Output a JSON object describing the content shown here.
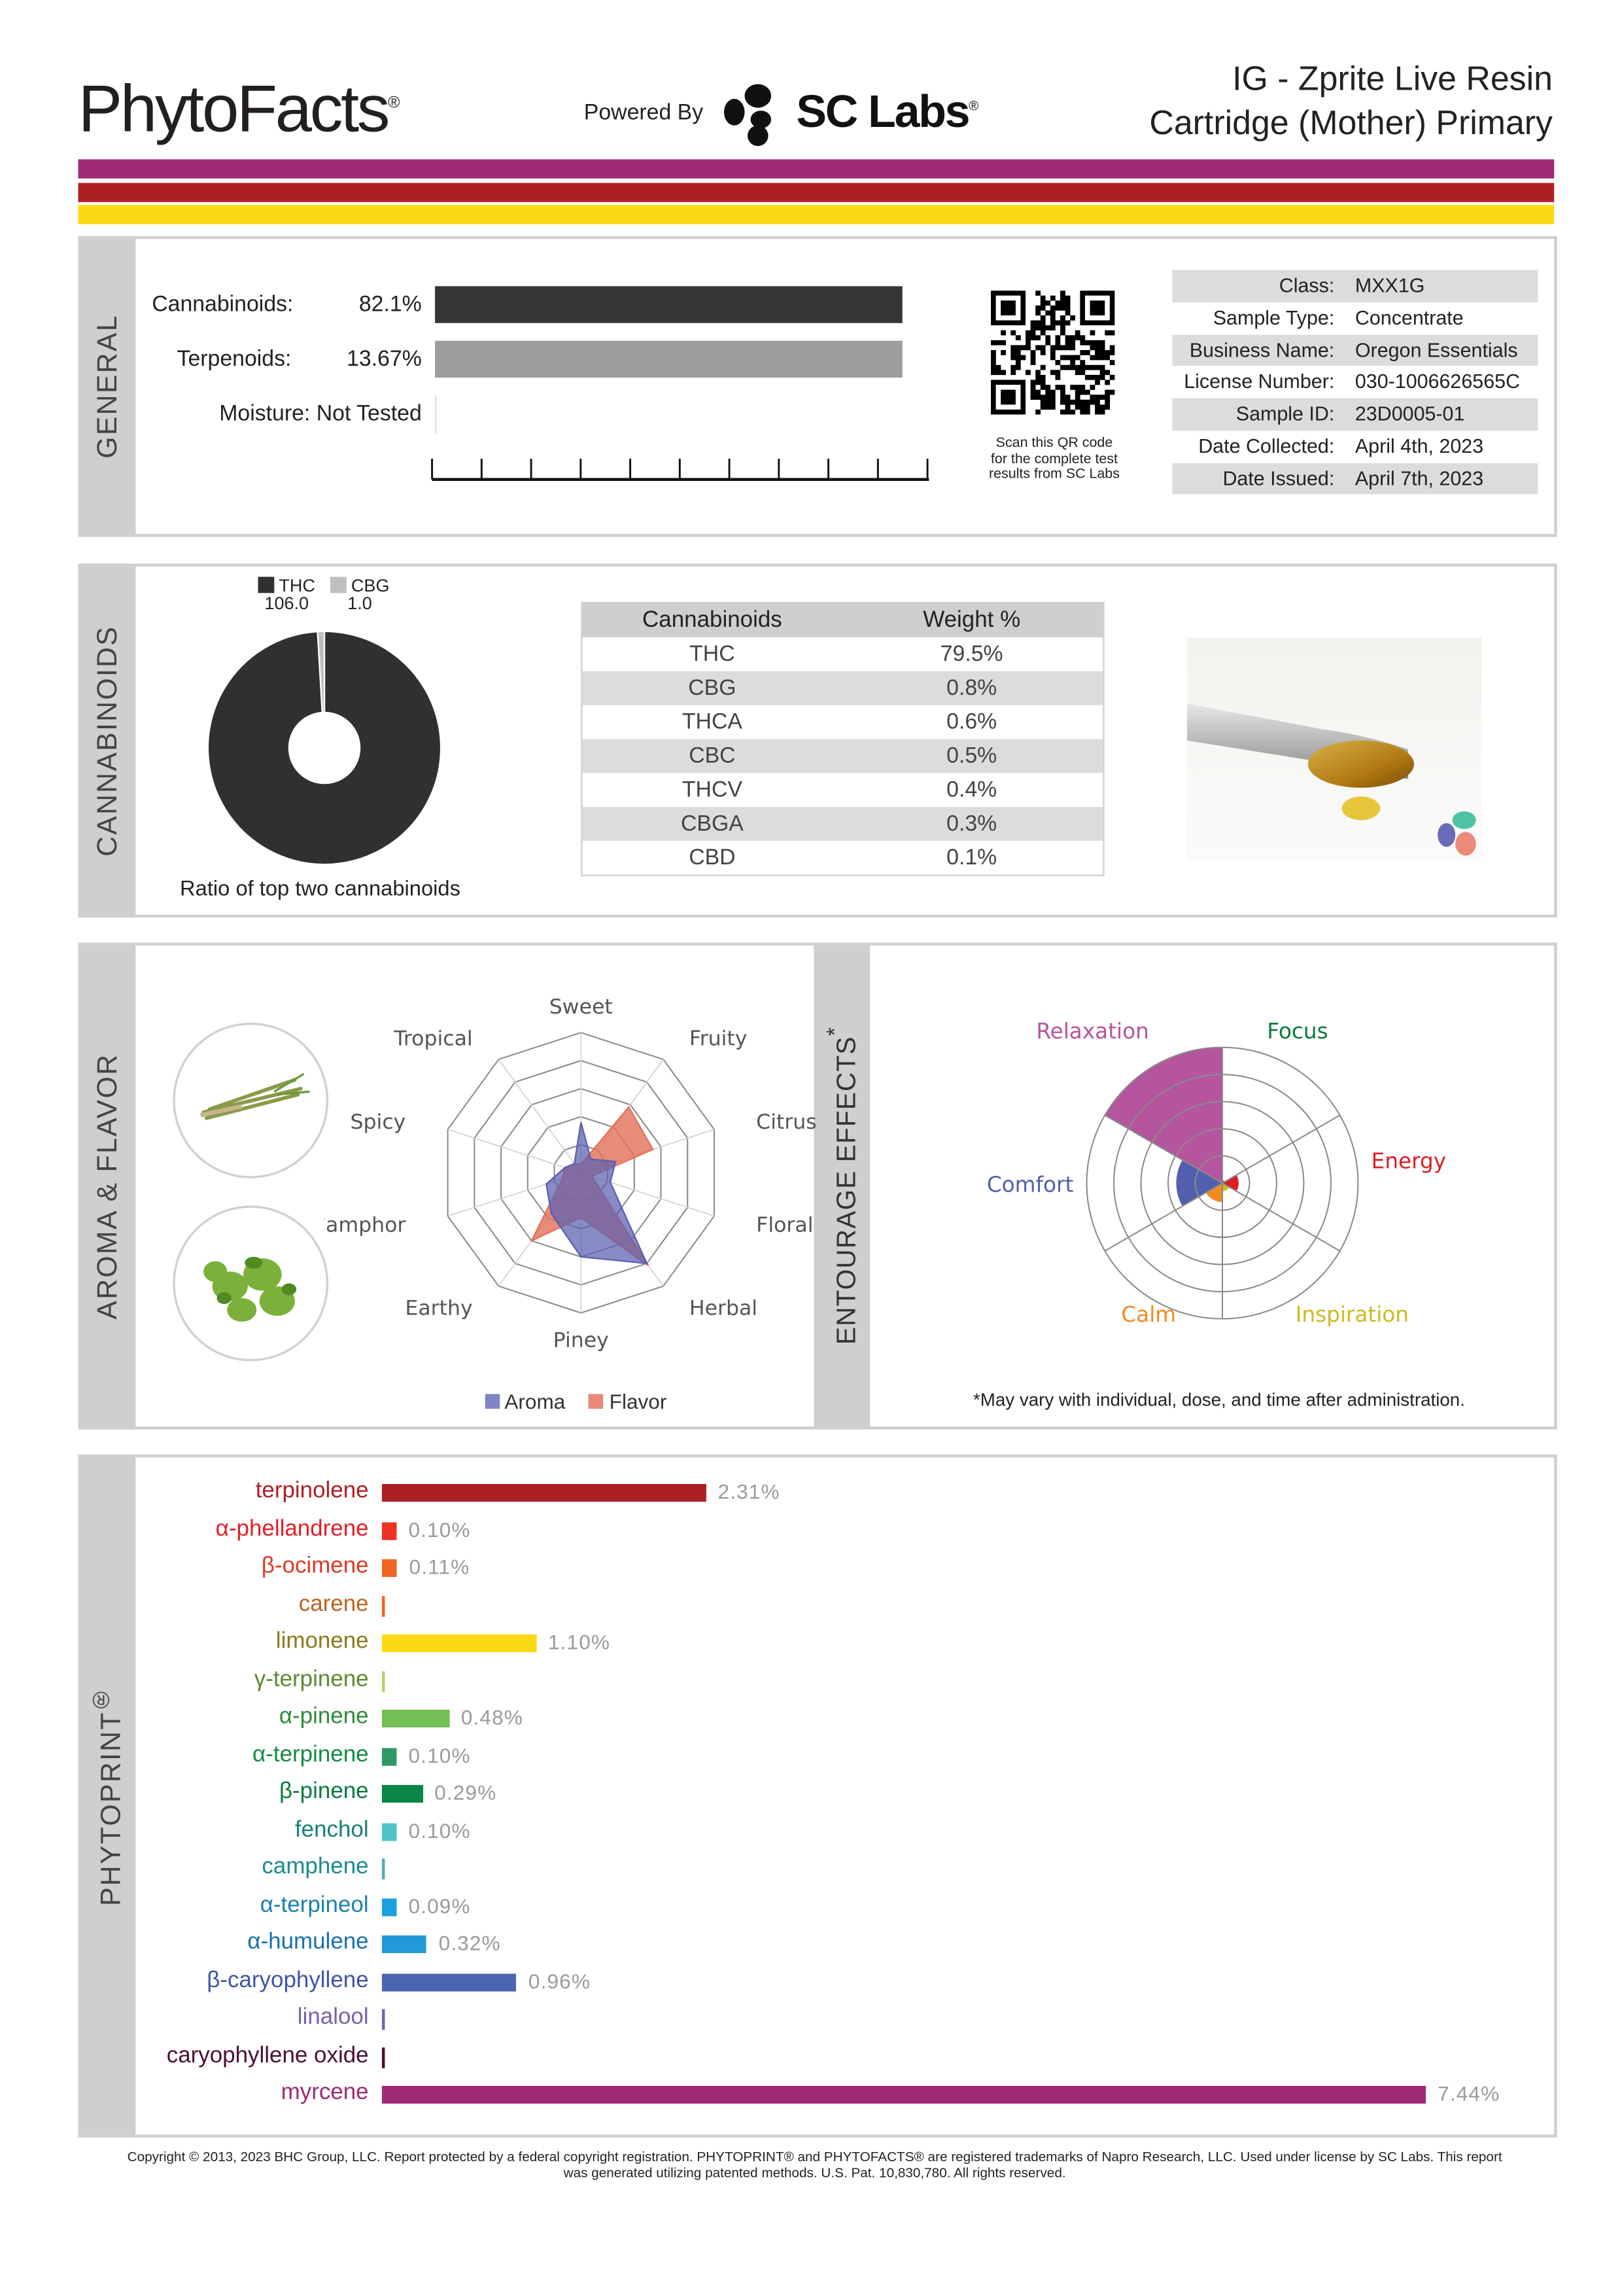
{
  "header": {
    "brand": "PhytoFacts",
    "brand_mark": "®",
    "powered_by": "Powered By",
    "lab_logo": "SC Labs",
    "title_line1": "IG - Zprite Live Resin",
    "title_line2": "Cartridge (Mother) Primary"
  },
  "colors": {
    "purple": "#9e2a76",
    "red": "#ae1f24",
    "yellow": "#fbd914",
    "panel_gray": "#cfcfd1"
  },
  "general": {
    "section_label": "GENERAL",
    "cannabinoids_label": "Cannabinoids:",
    "cannabinoids_value": "82.1%",
    "terpenoids_label": "Terpenoids:",
    "terpenoids_value": "13.67%",
    "moisture_label": "Moisture:",
    "moisture_value": "Not Tested",
    "qr_caption_1": "Scan this QR code",
    "qr_caption_2": "for the complete test",
    "qr_caption_3": "results from SC Labs",
    "info": [
      {
        "key": "Class:",
        "value": "MXX1G"
      },
      {
        "key": "Sample Type:",
        "value": "Concentrate"
      },
      {
        "key": "Business Name:",
        "value": "Oregon Essentials"
      },
      {
        "key": "License Number:",
        "value": "030-1006626565C"
      },
      {
        "key": "Sample ID:",
        "value": "23D0005-01"
      },
      {
        "key": "Date Collected:",
        "value": "April 4th, 2023"
      },
      {
        "key": "Date Issued:",
        "value": "April 7th, 2023"
      }
    ]
  },
  "cannabinoids": {
    "section_label": "CANNABINOIDS",
    "ratio_caption": "Ratio of top two cannabinoids",
    "table_headers": [
      "Cannabinoids",
      "Weight %"
    ],
    "rows": [
      {
        "name": "THC",
        "weight": "79.5%"
      },
      {
        "name": "CBG",
        "weight": "0.8%"
      },
      {
        "name": "THCA",
        "weight": "0.6%"
      },
      {
        "name": "CBC",
        "weight": "0.5%"
      },
      {
        "name": "THCV",
        "weight": "0.4%"
      },
      {
        "name": "CBGA",
        "weight": "0.3%"
      },
      {
        "name": "CBD",
        "weight": "0.1%"
      }
    ]
  },
  "aroma": {
    "section_label": "AROMA & FLAVOR",
    "effects_label": "ENTOURAGE EFFECTS",
    "effects_mark": "*",
    "disclaimer": "*May vary with individual, dose, and time after administration."
  },
  "phytoprint": {
    "section_label": "PHYTOPRINT",
    "mark": "®"
  },
  "chart_data": [
    {
      "type": "pie",
      "id": "ratio",
      "donut": true,
      "categories": [
        "THC",
        "CBG"
      ],
      "values": [
        106.0,
        1.0
      ],
      "value_labels": [
        "106.0",
        "1.0"
      ],
      "colors": [
        "#2f3131",
        "#bfbfbf"
      ],
      "legend": "top"
    },
    {
      "type": "radar",
      "id": "aroma_flavor",
      "axes": [
        "Sweet",
        "Fruity",
        "Citrus",
        "Floral",
        "Herbal",
        "Piney",
        "Earthy",
        "Camphor",
        "Spicy",
        "Tropical"
      ],
      "max": 5,
      "series": [
        {
          "name": "Aroma",
          "color": "#5a5fb0",
          "values": [
            1.8,
            0.6,
            1.3,
            1.1,
            4.0,
            3.0,
            1.8,
            1.3,
            0.6,
            0.4
          ]
        },
        {
          "name": "Flavor",
          "color": "#e4705a",
          "values": [
            0.3,
            2.9,
            2.7,
            0.4,
            4.1,
            1.6,
            3.0,
            0.7,
            0.6,
            0.4
          ]
        }
      ],
      "legend": "bottom"
    },
    {
      "type": "polar-bar",
      "id": "effects",
      "max": 5,
      "categories": [
        "Relaxation",
        "Focus",
        "Energy",
        "Inspiration",
        "Calm",
        "Comfort"
      ],
      "values": [
        5.0,
        0.1,
        0.6,
        0.3,
        0.7,
        1.7
      ],
      "colors": [
        "#b5559d",
        "#0a7a3a",
        "#dd1f26",
        "#cdbb1f",
        "#f28a1e",
        "#525fae"
      ]
    },
    {
      "type": "bar",
      "id": "terpenes",
      "orientation": "horizontal",
      "unit": "%",
      "items": [
        {
          "name": "terpinolene",
          "value": 2.31,
          "label": "2.31%",
          "text": "#ae1f24",
          "bar": "#ae1f24"
        },
        {
          "name": "α-phellandrene",
          "value": 0.1,
          "label": "0.10%",
          "text": "#e32028",
          "bar": "#ee3124"
        },
        {
          "name": "β-ocimene",
          "value": 0.11,
          "label": "0.11%",
          "text": "#dc3a26",
          "bar": "#f26522"
        },
        {
          "name": "carene",
          "value": 0,
          "label": null,
          "text": "#c0621f",
          "bar": "#f26522"
        },
        {
          "name": "limonene",
          "value": 1.1,
          "label": "1.10%",
          "text": "#8a7a1e",
          "bar": "#fbd914"
        },
        {
          "name": "γ-terpinene",
          "value": 0,
          "label": null,
          "text": "#5e8a2e",
          "bar": "#b5d36a"
        },
        {
          "name": "α-pinene",
          "value": 0.48,
          "label": "0.48%",
          "text": "#2e8b3a",
          "bar": "#72bf54"
        },
        {
          "name": "α-terpinene",
          "value": 0.1,
          "label": "0.10%",
          "text": "#138a45",
          "bar": "#2e9965"
        },
        {
          "name": "β-pinene",
          "value": 0.29,
          "label": "0.29%",
          "text": "#0a7a3e",
          "bar": "#0a8648"
        },
        {
          "name": "fenchol",
          "value": 0.1,
          "label": "0.10%",
          "text": "#17807a",
          "bar": "#4dc4c8"
        },
        {
          "name": "camphene",
          "value": 0,
          "label": null,
          "text": "#1a8a90",
          "bar": "#5aaab0"
        },
        {
          "name": "α-terpineol",
          "value": 0.09,
          "label": "0.09%",
          "text": "#1a80b0",
          "bar": "#19a0dd"
        },
        {
          "name": "α-humulene",
          "value": 0.32,
          "label": "0.32%",
          "text": "#1a70b0",
          "bar": "#2299d8"
        },
        {
          "name": "β-caryophyllene",
          "value": 0.96,
          "label": "0.96%",
          "text": "#3f55a8",
          "bar": "#4b65b0"
        },
        {
          "name": "linalool",
          "value": 0,
          "label": null,
          "text": "#7a60a8",
          "bar": "#7a60a8"
        },
        {
          "name": "caryophyllene oxide",
          "value": 0,
          "label": null,
          "text": "#4a1038",
          "bar": "#4a1038"
        },
        {
          "name": "myrcene",
          "value": 7.44,
          "label": "7.44%",
          "text": "#9e2a76",
          "bar": "#9e2a76"
        }
      ]
    }
  ],
  "footer": {
    "line1": "Copyright © 2013, 2023 BHC Group, LLC. Report protected by a federal copyright registration. PHYTOPRINT® and PHYTOFACTS® are registered trademarks of Napro Research, LLC. Used under license by SC Labs. This report",
    "line2": "was generated utilizing patented methods. U.S. Pat. 10,830,780. All rights reserved."
  }
}
